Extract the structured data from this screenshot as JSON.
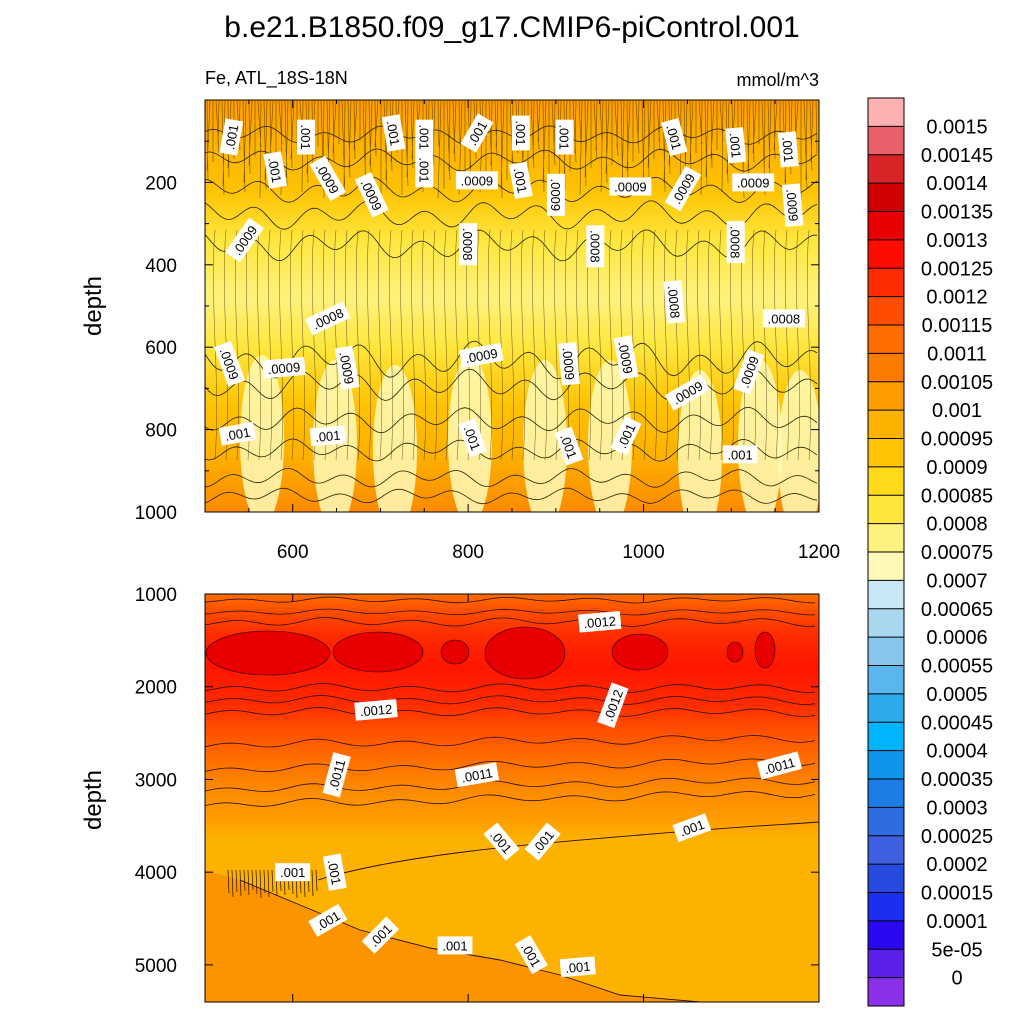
{
  "chart_data": [
    {
      "type": "contour",
      "panel": "upper",
      "title": "b.e21.B1850.f09_g17.CMIP6-piControl.001",
      "left_label": "Fe, ATL_18S-18N",
      "right_label": "mmol/m^3",
      "ylabel": "depth",
      "xlabel": "",
      "xlim": [
        500,
        1200
      ],
      "ylim": [
        1000,
        0
      ],
      "x_ticks": [
        "600",
        "800",
        "1000",
        "1200"
      ],
      "x_tick_values": [
        600,
        800,
        1000,
        1200
      ],
      "y_ticks": [
        "200",
        "400",
        "600",
        "800",
        "1000"
      ],
      "y_tick_values": [
        200,
        400,
        600,
        800,
        1000
      ],
      "contour_labels": [
        {
          "text": ".001",
          "x": 530,
          "y": 90,
          "angle": -80
        },
        {
          "text": ".001",
          "x": 537,
          "y": 810,
          "angle": -10
        },
        {
          "text": ".0009",
          "x": 545,
          "y": 340,
          "angle": -55
        },
        {
          "text": ".0009",
          "x": 528,
          "y": 640,
          "angle": 70
        },
        {
          "text": ".001",
          "x": 580,
          "y": 170,
          "angle": 80
        },
        {
          "text": ".0009",
          "x": 590,
          "y": 650,
          "angle": -5
        },
        {
          "text": ".001",
          "x": 615,
          "y": 90,
          "angle": 90
        },
        {
          "text": ".0009",
          "x": 640,
          "y": 190,
          "angle": 60
        },
        {
          "text": ".0008",
          "x": 640,
          "y": 530,
          "angle": -25
        },
        {
          "text": ".0009",
          "x": 662,
          "y": 650,
          "angle": 80
        },
        {
          "text": ".001",
          "x": 640,
          "y": 815,
          "angle": -5
        },
        {
          "text": ".0009",
          "x": 690,
          "y": 230,
          "angle": 65
        },
        {
          "text": ".001",
          "x": 715,
          "y": 80,
          "angle": 80
        },
        {
          "text": ".001",
          "x": 750,
          "y": 90,
          "angle": 90
        },
        {
          "text": ".001",
          "x": 750,
          "y": 170,
          "angle": 90
        },
        {
          "text": ".001",
          "x": 810,
          "y": 80,
          "angle": -60
        },
        {
          "text": ".0009",
          "x": 810,
          "y": 195,
          "angle": 0
        },
        {
          "text": ".0008",
          "x": 800,
          "y": 350,
          "angle": 90
        },
        {
          "text": ".0009",
          "x": 815,
          "y": 620,
          "angle": -10
        },
        {
          "text": ".001",
          "x": 805,
          "y": 820,
          "angle": 70
        },
        {
          "text": ".001",
          "x": 860,
          "y": 80,
          "angle": 90
        },
        {
          "text": ".001",
          "x": 860,
          "y": 195,
          "angle": 80
        },
        {
          "text": ".0009",
          "x": 900,
          "y": 230,
          "angle": 90
        },
        {
          "text": ".001",
          "x": 910,
          "y": 90,
          "angle": 90
        },
        {
          "text": ".0008",
          "x": 945,
          "y": 355,
          "angle": 90
        },
        {
          "text": ".0009",
          "x": 915,
          "y": 640,
          "angle": 85
        },
        {
          "text": ".001",
          "x": 915,
          "y": 840,
          "angle": 70
        },
        {
          "text": ".0009",
          "x": 985,
          "y": 210,
          "angle": 0
        },
        {
          "text": ".0009",
          "x": 980,
          "y": 625,
          "angle": 80
        },
        {
          "text": ".001",
          "x": 980,
          "y": 815,
          "angle": -65
        },
        {
          "text": ".001",
          "x": 1035,
          "y": 90,
          "angle": 75
        },
        {
          "text": ".0009",
          "x": 1045,
          "y": 215,
          "angle": -60
        },
        {
          "text": ".0008",
          "x": 1035,
          "y": 490,
          "angle": 85
        },
        {
          "text": ".0009",
          "x": 1050,
          "y": 710,
          "angle": -30
        },
        {
          "text": ".0009",
          "x": 1125,
          "y": 200,
          "angle": 0
        },
        {
          "text": ".001",
          "x": 1105,
          "y": 110,
          "angle": 85
        },
        {
          "text": ".0008",
          "x": 1105,
          "y": 345,
          "angle": 90
        },
        {
          "text": ".0009",
          "x": 1120,
          "y": 660,
          "angle": -70
        },
        {
          "text": ".001",
          "x": 1110,
          "y": 860,
          "angle": 0
        },
        {
          "text": ".0008",
          "x": 1160,
          "y": 530,
          "angle": 0
        },
        {
          "text": ".001",
          "x": 1165,
          "y": 120,
          "angle": 85
        },
        {
          "text": ".0009",
          "x": 1170,
          "y": 255,
          "angle": 85
        }
      ]
    },
    {
      "type": "contour",
      "panel": "lower",
      "ylabel": "depth",
      "xlabel": "",
      "xlim": [
        500,
        1200
      ],
      "ylim": [
        5400,
        1000
      ],
      "y_ticks": [
        "1000",
        "2000",
        "3000",
        "4000",
        "5000"
      ],
      "y_tick_values": [
        1000,
        2000,
        3000,
        4000,
        5000
      ],
      "contour_labels": [
        {
          "text": ".0012",
          "x": 950,
          "y": 1300,
          "angle": -5
        },
        {
          "text": ".0012",
          "x": 695,
          "y": 2250,
          "angle": -5
        },
        {
          "text": ".0012",
          "x": 965,
          "y": 2200,
          "angle": -70
        },
        {
          "text": ".0011",
          "x": 650,
          "y": 2950,
          "angle": -75
        },
        {
          "text": ".0011",
          "x": 810,
          "y": 2950,
          "angle": -10
        },
        {
          "text": ".0011",
          "x": 1155,
          "y": 2850,
          "angle": -15
        },
        {
          "text": ".001",
          "x": 838,
          "y": 3670,
          "angle": 50
        },
        {
          "text": ".001",
          "x": 885,
          "y": 3670,
          "angle": -50
        },
        {
          "text": ".001",
          "x": 1055,
          "y": 3520,
          "angle": -20
        },
        {
          "text": ".001",
          "x": 600,
          "y": 4000,
          "angle": 0
        },
        {
          "text": ".001",
          "x": 648,
          "y": 4000,
          "angle": 80
        },
        {
          "text": ".001",
          "x": 640,
          "y": 4520,
          "angle": -30
        },
        {
          "text": ".001",
          "x": 700,
          "y": 4680,
          "angle": -45
        },
        {
          "text": ".001",
          "x": 785,
          "y": 4790,
          "angle": 0
        },
        {
          "text": ".001",
          "x": 872,
          "y": 4890,
          "angle": 60
        },
        {
          "text": ".001",
          "x": 925,
          "y": 5020,
          "angle": -5
        }
      ]
    },
    {
      "type": "colorbar",
      "levels": [
        "0.0015",
        "0.00145",
        "0.0014",
        "0.00135",
        "0.0013",
        "0.00125",
        "0.0012",
        "0.00115",
        "0.0011",
        "0.00105",
        "0.001",
        "0.00095",
        "0.0009",
        "0.00085",
        "0.0008",
        "0.00075",
        "0.0007",
        "0.00065",
        "0.0006",
        "0.00055",
        "0.0005",
        "0.00045",
        "0.0004",
        "0.00035",
        "0.0003",
        "0.00025",
        "0.0002",
        "0.00015",
        "0.0001",
        "5e-05",
        "0"
      ],
      "colors": [
        "#fdb1b3",
        "#e8616a",
        "#d72426",
        "#d10000",
        "#e80000",
        "#ff0c00",
        "#fe2c00",
        "#ff4d00",
        "#ff6c00",
        "#fc7a00",
        "#ff9c00",
        "#fdb100",
        "#fec303",
        "#ffda19",
        "#ffe63d",
        "#fef27e",
        "#fffab8",
        "#c8e6f4",
        "#a9d7ef",
        "#86c6ec",
        "#5ab6ec",
        "#2eaaec",
        "#00b4ff",
        "#0d96ec",
        "#1c7de7",
        "#2d6de1",
        "#3e5fe0",
        "#2649e0",
        "#1b2ff0",
        "#2b08f2",
        "#5a20ea",
        "#8a30e8"
      ]
    }
  ],
  "figure": {
    "title": "b.e21.B1850.f09_g17.CMIP6-piControl.001",
    "left_label": "Fe, ATL_18S-18N",
    "right_label": "mmol/m^3",
    "ylabel_top": "depth",
    "ylabel_bottom": "depth"
  }
}
